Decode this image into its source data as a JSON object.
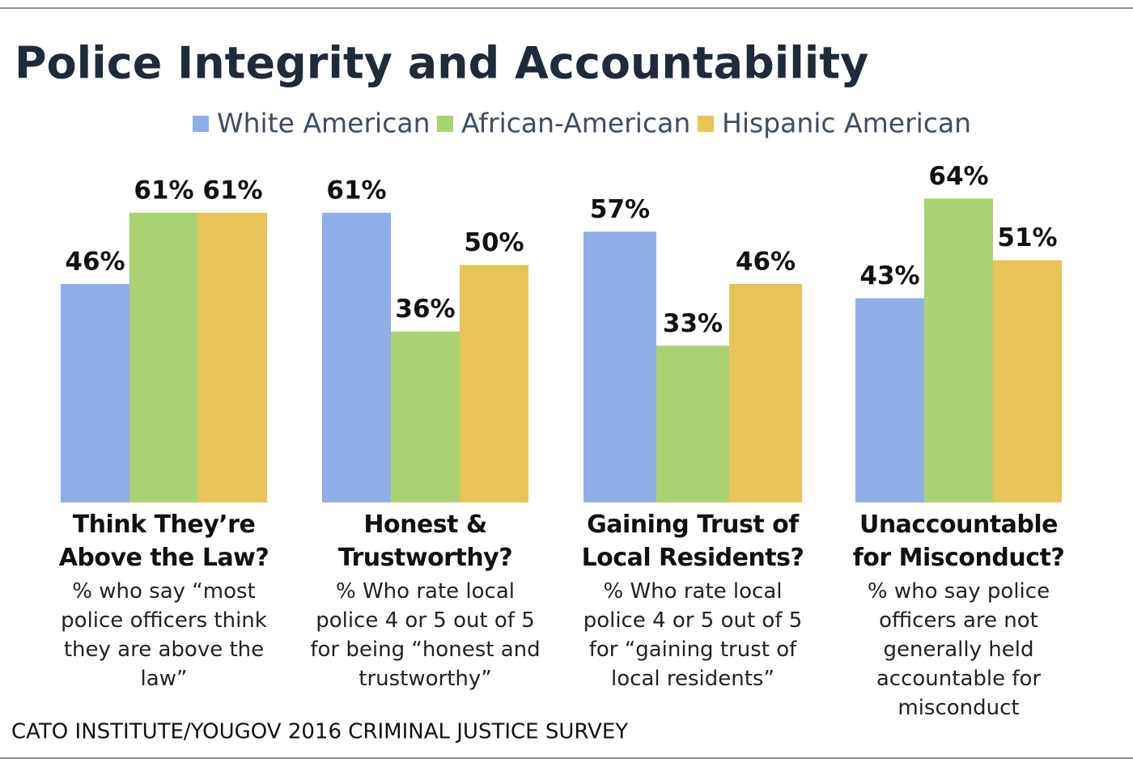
{
  "chart_data": {
    "type": "bar",
    "title": "Police Integrity and Accountability",
    "categories": [
      "Think They’re Above the Law?",
      "Honest & Trustworthy?",
      "Gaining Trust of Local Residents?",
      "Unaccountable for Misconduct?"
    ],
    "descriptions": [
      "% who say “most police officers think they are above the law”",
      "% Who rate local police 4 or 5 out of 5 for being “honest and trustworthy”",
      "% Who rate local police 4 or 5 out of 5 for “gaining trust of local residents”",
      "% who say police officers are not generally held accountable for misconduct"
    ],
    "series": [
      {
        "name": "White American",
        "color": "#8eaee8",
        "values": [
          46,
          61,
          57,
          43
        ],
        "value_labels": [
          "46%",
          "61%",
          "57%",
          "43%"
        ]
      },
      {
        "name": "African-American",
        "color": "#a9d273",
        "values": [
          61,
          36,
          33,
          64
        ],
        "value_labels": [
          "61%",
          "36%",
          "33%",
          "64%"
        ]
      },
      {
        "name": "Hispanic American",
        "color": "#e8c458",
        "values": [
          61,
          50,
          46,
          51
        ],
        "value_labels": [
          "61%",
          "50%",
          "46%",
          "51%"
        ]
      }
    ],
    "ylim": [
      0,
      100
    ],
    "source": "CATO INSTITUTE/YOUGOV 2016 CRIMINAL JUSTICE SURVEY"
  }
}
